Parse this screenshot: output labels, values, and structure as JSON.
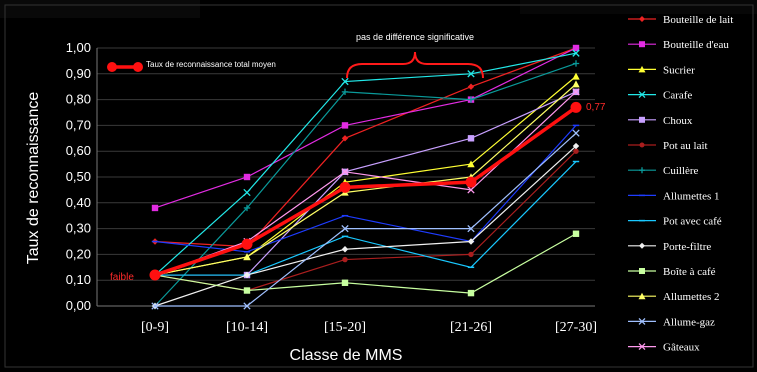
{
  "chart_data": {
    "type": "line",
    "xlabel": "Classe de MMS",
    "ylabel": "Taux de reconnaissance",
    "ylim": [
      0,
      1
    ],
    "yticks": [
      "0,00",
      "0,10",
      "0,20",
      "0,30",
      "0,40",
      "0,50",
      "0,60",
      "0,70",
      "0,80",
      "0,90",
      "1,00"
    ],
    "categories": [
      "[0-9]",
      "[10-14]",
      "[15-20]",
      "[21-26]",
      "[27-30]"
    ],
    "grid": true,
    "legend_placement": "right",
    "series": [
      {
        "name": "Bouteille de lait",
        "color": "#ee2222",
        "marker": "diamond",
        "values": [
          0.25,
          0.23,
          0.65,
          0.85,
          1.0
        ]
      },
      {
        "name": "Bouteille d'eau",
        "color": "#e22ce2",
        "marker": "square",
        "values": [
          0.38,
          0.5,
          0.7,
          0.8,
          1.0
        ]
      },
      {
        "name": "Sucrier",
        "color": "#ffff33",
        "marker": "triangle",
        "values": [
          0.12,
          0.19,
          0.48,
          0.55,
          0.89
        ]
      },
      {
        "name": "Carafe",
        "color": "#22e8e8",
        "marker": "x",
        "values": [
          0.12,
          0.44,
          0.87,
          0.9,
          0.98
        ]
      },
      {
        "name": "Choux",
        "color": "#c8a0ff",
        "marker": "square",
        "values": [
          0.12,
          0.12,
          0.52,
          0.65,
          0.83
        ]
      },
      {
        "name": "Pot au lait",
        "color": "#aa1e1e",
        "marker": "circle",
        "values": [
          0.12,
          0.06,
          0.18,
          0.2,
          0.6
        ]
      },
      {
        "name": "Cuillère",
        "color": "#0a9a9a",
        "marker": "plus",
        "values": [
          0.0,
          0.38,
          0.83,
          0.8,
          0.94
        ]
      },
      {
        "name": "Allumettes 1",
        "color": "#1e3cff",
        "marker": "dash",
        "values": [
          0.25,
          0.21,
          0.35,
          0.25,
          0.7
        ]
      },
      {
        "name": "Pot avec café",
        "color": "#19c8ff",
        "marker": "dash",
        "values": [
          0.12,
          0.12,
          0.27,
          0.15,
          0.56
        ]
      },
      {
        "name": "Porte-filtre",
        "color": "#f0f0f0",
        "marker": "diamond",
        "values": [
          0.0,
          0.12,
          0.22,
          0.25,
          0.62
        ]
      },
      {
        "name": "Boîte à café",
        "color": "#c8ffa0",
        "marker": "square",
        "values": [
          0.12,
          0.06,
          0.09,
          0.05,
          0.28
        ]
      },
      {
        "name": "Allumettes 2",
        "color": "#ffff66",
        "marker": "triangle",
        "values": [
          0.12,
          0.19,
          0.44,
          0.5,
          0.86
        ]
      },
      {
        "name": "Allume-gaz",
        "color": "#a0c0ff",
        "marker": "x",
        "values": [
          0.0,
          0.0,
          0.3,
          0.3,
          0.67
        ]
      },
      {
        "name": "Gâteaux",
        "color": "#ff99ee",
        "marker": "x",
        "values": [
          0.12,
          0.25,
          0.52,
          0.45,
          0.83
        ]
      }
    ],
    "mean_series": {
      "name": "Taux de reconnaissance total moyen",
      "color": "#ff1010",
      "values": [
        0.12,
        0.24,
        0.46,
        0.48,
        0.77
      ]
    },
    "annotations": {
      "brace_label": "pas de différence significative",
      "low_label": "faible",
      "end_value": "0,77"
    }
  }
}
